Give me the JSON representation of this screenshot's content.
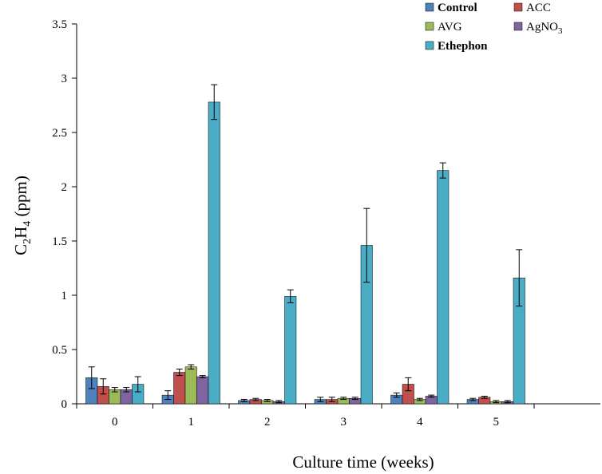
{
  "chart_data": {
    "type": "bar",
    "categories": [
      "0",
      "1",
      "2",
      "3",
      "4",
      "5"
    ],
    "xlabel": "Culture time (weeks)",
    "ylabel": {
      "base": "C",
      "sub1": "2",
      "mid": "H",
      "sub2": "4",
      "unit": " (ppm)"
    },
    "ylim": [
      0,
      3.5
    ],
    "yticks": [
      "0",
      "0.5",
      "1",
      "1.5",
      "2",
      "2.5",
      "3",
      "3.5"
    ],
    "grid": false,
    "legend_position": "top-right",
    "series": [
      {
        "name": "Control",
        "color": "#4f81bd",
        "values": [
          0.24,
          0.08,
          0.03,
          0.04,
          0.08,
          0.04
        ],
        "errors": [
          0.1,
          0.04,
          0.01,
          0.02,
          0.02,
          0.01
        ]
      },
      {
        "name": "ACC",
        "color": "#c0504d",
        "values": [
          0.16,
          0.29,
          0.04,
          0.04,
          0.18,
          0.06
        ],
        "errors": [
          0.07,
          0.03,
          0.01,
          0.02,
          0.06,
          0.01
        ]
      },
      {
        "name": "AVG",
        "color": "#9bbb59",
        "values": [
          0.13,
          0.34,
          0.03,
          0.05,
          0.04,
          0.02
        ],
        "errors": [
          0.02,
          0.02,
          0.01,
          0.01,
          0.01,
          0.01
        ]
      },
      {
        "name": "AgNO",
        "sub": "3",
        "color": "#8064a2",
        "values": [
          0.13,
          0.25,
          0.02,
          0.05,
          0.07,
          0.02
        ],
        "errors": [
          0.02,
          0.01,
          0.01,
          0.01,
          0.01,
          0.01
        ]
      },
      {
        "name": "Ethephon",
        "color": "#4bacc6",
        "values": [
          0.18,
          2.78,
          0.99,
          1.46,
          2.15,
          1.16
        ],
        "errors": [
          0.07,
          0.16,
          0.06,
          0.34,
          0.07,
          0.26
        ]
      }
    ]
  }
}
